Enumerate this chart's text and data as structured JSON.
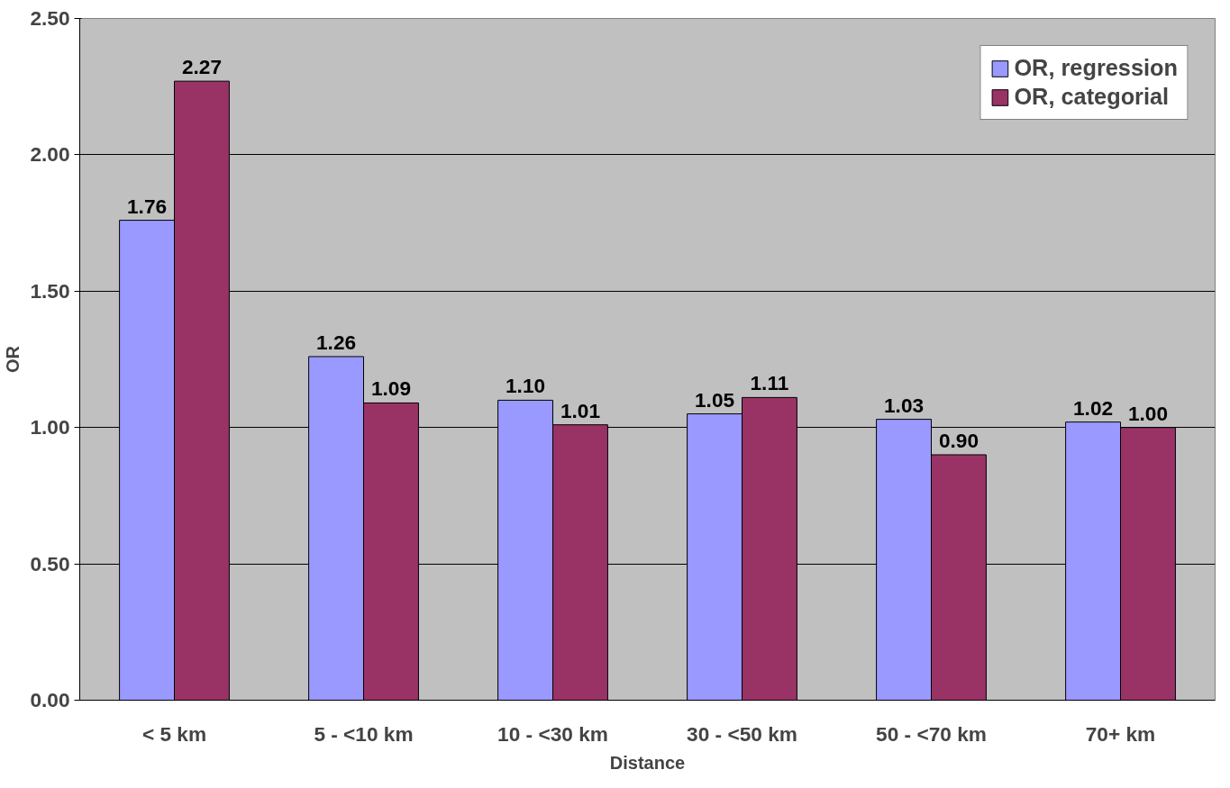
{
  "chart_data": {
    "type": "bar",
    "xlabel": "Distance",
    "ylabel": "OR",
    "categories": [
      "< 5 km",
      "5 - <10 km",
      "10 - <30 km",
      "30 - <50 km",
      "50 - <70 km",
      "70+ km"
    ],
    "series": [
      {
        "name": "OR, regression",
        "color": "#9999ff",
        "values": [
          1.76,
          1.26,
          1.1,
          1.05,
          1.03,
          1.02
        ],
        "value_labels": [
          "1.76",
          "1.26",
          "1.10",
          "1.05",
          "1.03",
          "1.02"
        ]
      },
      {
        "name": "OR, categorial",
        "color": "#993366",
        "values": [
          2.27,
          1.09,
          1.01,
          1.11,
          0.9,
          1.0
        ],
        "value_labels": [
          "2.27",
          "1.09",
          "1.01",
          "1.11",
          "0.90",
          "1.00"
        ]
      }
    ],
    "ylim": [
      0,
      2.5
    ],
    "yticks": [
      {
        "value": 0,
        "label": "0.00"
      },
      {
        "value": 0.5,
        "label": "0.50"
      },
      {
        "value": 1,
        "label": "1.00"
      },
      {
        "value": 1.5,
        "label": "1.50"
      },
      {
        "value": 2,
        "label": "2.00"
      },
      {
        "value": 2.5,
        "label": "2.50"
      }
    ],
    "grid": "y",
    "legend": "top right"
  }
}
